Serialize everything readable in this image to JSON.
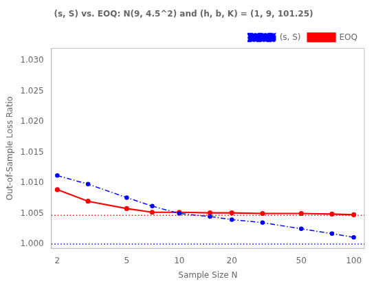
{
  "chart_data": {
    "type": "line",
    "title": "(s, S) vs. EOQ: N(9, 4.5^2) and (h, b, K) = (1, 9, 101.25)",
    "xlabel": "Sample Size N",
    "ylabel": "Out-of-Sample Loss Ratio",
    "x": [
      2,
      3,
      5,
      7,
      10,
      15,
      20,
      30,
      50,
      75,
      100
    ],
    "series": [
      {
        "name": "(s, S)",
        "color": "blue",
        "line_style": "dashdot",
        "marker": "point",
        "values": [
          1.0112,
          1.0098,
          1.0076,
          1.0062,
          1.005,
          1.0045,
          1.004,
          1.0035,
          1.0025,
          1.0017,
          1.0011
        ]
      },
      {
        "name": "EOQ",
        "color": "red",
        "line_style": "solid",
        "marker": "point",
        "values": [
          1.0089,
          1.007,
          1.0058,
          1.0052,
          1.0052,
          1.0051,
          1.0051,
          1.005,
          1.005,
          1.0049,
          1.0048
        ]
      }
    ],
    "hlines": [
      {
        "y": 1.0,
        "color": "blue",
        "line_style": "dotted"
      },
      {
        "y": 1.0047,
        "color": "red",
        "line_style": "dotted"
      }
    ],
    "log": "x",
    "xlim": [
      1.85,
      115
    ],
    "xticks": [
      2,
      5,
      10,
      20,
      50,
      100
    ],
    "ylim": [
      0.9993,
      1.032
    ],
    "yticks": [
      {
        "value": 1.0,
        "label": "1.000"
      },
      {
        "value": 1.005,
        "label": "1.005"
      },
      {
        "value": 1.01,
        "label": "1.010"
      },
      {
        "value": 1.015,
        "label": "1.015"
      },
      {
        "value": 1.02,
        "label": "1.020"
      },
      {
        "value": 1.025,
        "label": "1.025"
      },
      {
        "value": 1.03,
        "label": "1.030"
      }
    ],
    "grid": false,
    "legend": "upper right"
  }
}
